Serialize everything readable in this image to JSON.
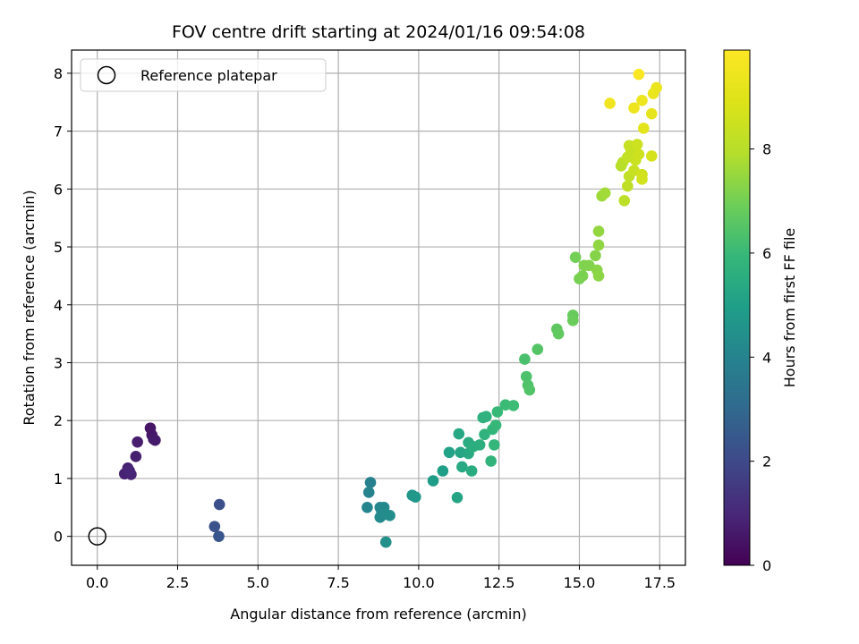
{
  "chart_data": {
    "type": "scatter",
    "title": "FOV centre drift starting at 2024/01/16 09:54:08",
    "xlabel": "Angular distance from reference (arcmin)",
    "ylabel": "Rotation from reference (arcmin)",
    "xlim": [
      -0.8,
      18.3
    ],
    "ylim": [
      -0.5,
      8.4
    ],
    "xticks": [
      "0.0",
      "2.5",
      "5.0",
      "7.5",
      "10.0",
      "12.5",
      "15.0",
      "17.5"
    ],
    "xtick_values": [
      0,
      2.5,
      5,
      7.5,
      10,
      12.5,
      15,
      17.5
    ],
    "yticks": [
      "0",
      "1",
      "2",
      "3",
      "4",
      "5",
      "6",
      "7",
      "8"
    ],
    "ytick_values": [
      0,
      1,
      2,
      3,
      4,
      5,
      6,
      7,
      8
    ],
    "grid": true,
    "legend": {
      "placement": "top-left",
      "entries": [
        "Reference platepar"
      ]
    },
    "reference_point": {
      "x": 0,
      "y": 0
    },
    "colorbar": {
      "label": "Hours from first FF file",
      "range": [
        0,
        9.9
      ],
      "ticks": [
        "0",
        "2",
        "4",
        "6",
        "8"
      ],
      "tick_values": [
        0,
        2,
        4,
        6,
        8
      ],
      "colormap": "viridis"
    },
    "points": [
      {
        "x": 1.65,
        "y": 1.87,
        "c": 0.5
      },
      {
        "x": 1.7,
        "y": 1.75,
        "c": 0.55
      },
      {
        "x": 1.75,
        "y": 1.68,
        "c": 0.6
      },
      {
        "x": 1.8,
        "y": 1.66,
        "c": 0.65
      },
      {
        "x": 1.25,
        "y": 1.63,
        "c": 0.7
      },
      {
        "x": 1.2,
        "y": 1.38,
        "c": 0.75
      },
      {
        "x": 0.95,
        "y": 1.18,
        "c": 0.8
      },
      {
        "x": 0.85,
        "y": 1.08,
        "c": 0.85
      },
      {
        "x": 1.05,
        "y": 1.07,
        "c": 0.9
      },
      {
        "x": 1.0,
        "y": 1.13,
        "c": 0.95
      },
      {
        "x": 3.8,
        "y": 0.55,
        "c": 2.2
      },
      {
        "x": 3.65,
        "y": 0.17,
        "c": 2.3
      },
      {
        "x": 3.78,
        "y": 0.0,
        "c": 2.4
      },
      {
        "x": 8.5,
        "y": 0.93,
        "c": 3.9
      },
      {
        "x": 8.45,
        "y": 0.76,
        "c": 4.0
      },
      {
        "x": 8.4,
        "y": 0.5,
        "c": 4.05
      },
      {
        "x": 8.8,
        "y": 0.5,
        "c": 4.1
      },
      {
        "x": 8.85,
        "y": 0.43,
        "c": 4.15
      },
      {
        "x": 8.92,
        "y": 0.5,
        "c": 4.2
      },
      {
        "x": 8.8,
        "y": 0.33,
        "c": 4.25
      },
      {
        "x": 8.95,
        "y": 0.38,
        "c": 4.3
      },
      {
        "x": 9.1,
        "y": 0.36,
        "c": 4.35
      },
      {
        "x": 8.98,
        "y": -0.1,
        "c": 4.45
      },
      {
        "x": 9.8,
        "y": 0.71,
        "c": 4.7
      },
      {
        "x": 9.9,
        "y": 0.68,
        "c": 4.75
      },
      {
        "x": 10.45,
        "y": 0.96,
        "c": 4.9
      },
      {
        "x": 10.75,
        "y": 1.13,
        "c": 5.0
      },
      {
        "x": 10.95,
        "y": 1.45,
        "c": 5.1
      },
      {
        "x": 11.2,
        "y": 0.67,
        "c": 5.2
      },
      {
        "x": 11.3,
        "y": 1.45,
        "c": 5.25
      },
      {
        "x": 11.25,
        "y": 1.77,
        "c": 5.3
      },
      {
        "x": 11.35,
        "y": 1.2,
        "c": 5.35
      },
      {
        "x": 11.55,
        "y": 1.43,
        "c": 5.4
      },
      {
        "x": 11.55,
        "y": 1.62,
        "c": 5.45
      },
      {
        "x": 11.65,
        "y": 1.13,
        "c": 5.5
      },
      {
        "x": 11.7,
        "y": 1.55,
        "c": 5.55
      },
      {
        "x": 11.9,
        "y": 1.58,
        "c": 5.6
      },
      {
        "x": 12.0,
        "y": 2.05,
        "c": 5.65
      },
      {
        "x": 12.1,
        "y": 2.07,
        "c": 5.7
      },
      {
        "x": 12.05,
        "y": 1.76,
        "c": 5.75
      },
      {
        "x": 12.25,
        "y": 1.3,
        "c": 5.8
      },
      {
        "x": 12.3,
        "y": 1.85,
        "c": 5.85
      },
      {
        "x": 12.35,
        "y": 1.58,
        "c": 5.9
      },
      {
        "x": 12.4,
        "y": 1.92,
        "c": 5.95
      },
      {
        "x": 12.45,
        "y": 2.15,
        "c": 6.0
      },
      {
        "x": 12.7,
        "y": 2.27,
        "c": 6.05
      },
      {
        "x": 12.95,
        "y": 2.26,
        "c": 6.1
      },
      {
        "x": 13.3,
        "y": 3.06,
        "c": 6.3
      },
      {
        "x": 13.35,
        "y": 2.76,
        "c": 6.35
      },
      {
        "x": 13.4,
        "y": 2.61,
        "c": 6.4
      },
      {
        "x": 13.45,
        "y": 2.53,
        "c": 6.45
      },
      {
        "x": 13.7,
        "y": 3.23,
        "c": 6.5
      },
      {
        "x": 14.3,
        "y": 3.58,
        "c": 6.65
      },
      {
        "x": 14.35,
        "y": 3.5,
        "c": 6.7
      },
      {
        "x": 14.8,
        "y": 3.82,
        "c": 6.8
      },
      {
        "x": 14.8,
        "y": 3.73,
        "c": 6.85
      },
      {
        "x": 14.88,
        "y": 4.82,
        "c": 7.0
      },
      {
        "x": 15.0,
        "y": 4.45,
        "c": 7.05
      },
      {
        "x": 15.1,
        "y": 4.5,
        "c": 7.1
      },
      {
        "x": 15.15,
        "y": 4.68,
        "c": 7.15
      },
      {
        "x": 15.3,
        "y": 4.68,
        "c": 7.2
      },
      {
        "x": 15.5,
        "y": 4.85,
        "c": 7.25
      },
      {
        "x": 15.55,
        "y": 4.6,
        "c": 7.3
      },
      {
        "x": 15.6,
        "y": 4.5,
        "c": 7.35
      },
      {
        "x": 15.6,
        "y": 5.03,
        "c": 7.4
      },
      {
        "x": 15.6,
        "y": 5.27,
        "c": 7.45
      },
      {
        "x": 15.7,
        "y": 5.88,
        "c": 7.6
      },
      {
        "x": 15.8,
        "y": 5.93,
        "c": 7.65
      },
      {
        "x": 16.3,
        "y": 6.4,
        "c": 8.0
      },
      {
        "x": 16.35,
        "y": 6.46,
        "c": 8.05
      },
      {
        "x": 16.4,
        "y": 5.8,
        "c": 8.1
      },
      {
        "x": 16.5,
        "y": 6.05,
        "c": 8.15
      },
      {
        "x": 16.55,
        "y": 6.22,
        "c": 8.2
      },
      {
        "x": 16.5,
        "y": 6.55,
        "c": 8.25
      },
      {
        "x": 16.6,
        "y": 6.68,
        "c": 8.3
      },
      {
        "x": 16.55,
        "y": 6.75,
        "c": 8.35
      },
      {
        "x": 16.7,
        "y": 6.32,
        "c": 8.4
      },
      {
        "x": 16.75,
        "y": 6.5,
        "c": 8.45
      },
      {
        "x": 16.8,
        "y": 6.77,
        "c": 8.5
      },
      {
        "x": 16.85,
        "y": 6.6,
        "c": 8.55
      },
      {
        "x": 16.95,
        "y": 6.25,
        "c": 8.6
      },
      {
        "x": 16.95,
        "y": 6.17,
        "c": 8.65
      },
      {
        "x": 17.25,
        "y": 6.57,
        "c": 8.7
      },
      {
        "x": 17.0,
        "y": 7.05,
        "c": 9.1
      },
      {
        "x": 17.25,
        "y": 7.3,
        "c": 9.2
      },
      {
        "x": 17.3,
        "y": 7.65,
        "c": 9.3
      },
      {
        "x": 17.4,
        "y": 7.75,
        "c": 9.35
      },
      {
        "x": 16.95,
        "y": 7.53,
        "c": 9.4
      },
      {
        "x": 16.7,
        "y": 7.4,
        "c": 9.45
      },
      {
        "x": 15.95,
        "y": 7.48,
        "c": 9.5
      },
      {
        "x": 16.85,
        "y": 7.98,
        "c": 9.8
      }
    ]
  }
}
